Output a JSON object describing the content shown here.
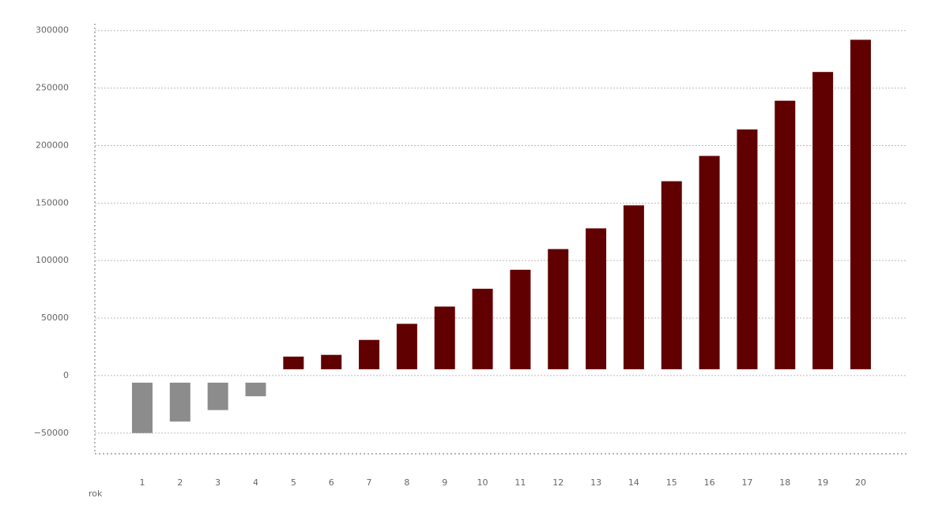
{
  "chart_data": {
    "type": "bar",
    "x_label": "rok",
    "categories": [
      "1",
      "2",
      "3",
      "4",
      "5",
      "6",
      "7",
      "8",
      "9",
      "10",
      "11",
      "12",
      "13",
      "14",
      "15",
      "16",
      "17",
      "18",
      "19",
      "20"
    ],
    "values": [
      -50000,
      -40000,
      -30000,
      -18000,
      16500,
      18000,
      31000,
      45000,
      60000,
      75500,
      92000,
      110000,
      128000,
      148000,
      169000,
      191000,
      214000,
      239000,
      264000,
      292000
    ],
    "colors": {
      "positive": "#600000",
      "negative": "#8c8c8c"
    },
    "ylim": [
      -68000,
      306000
    ],
    "yticks": [
      {
        "value": -50000,
        "label": "−50000"
      },
      0,
      50000,
      100000,
      150000,
      200000,
      250000,
      300000
    ],
    "grid": true
  }
}
